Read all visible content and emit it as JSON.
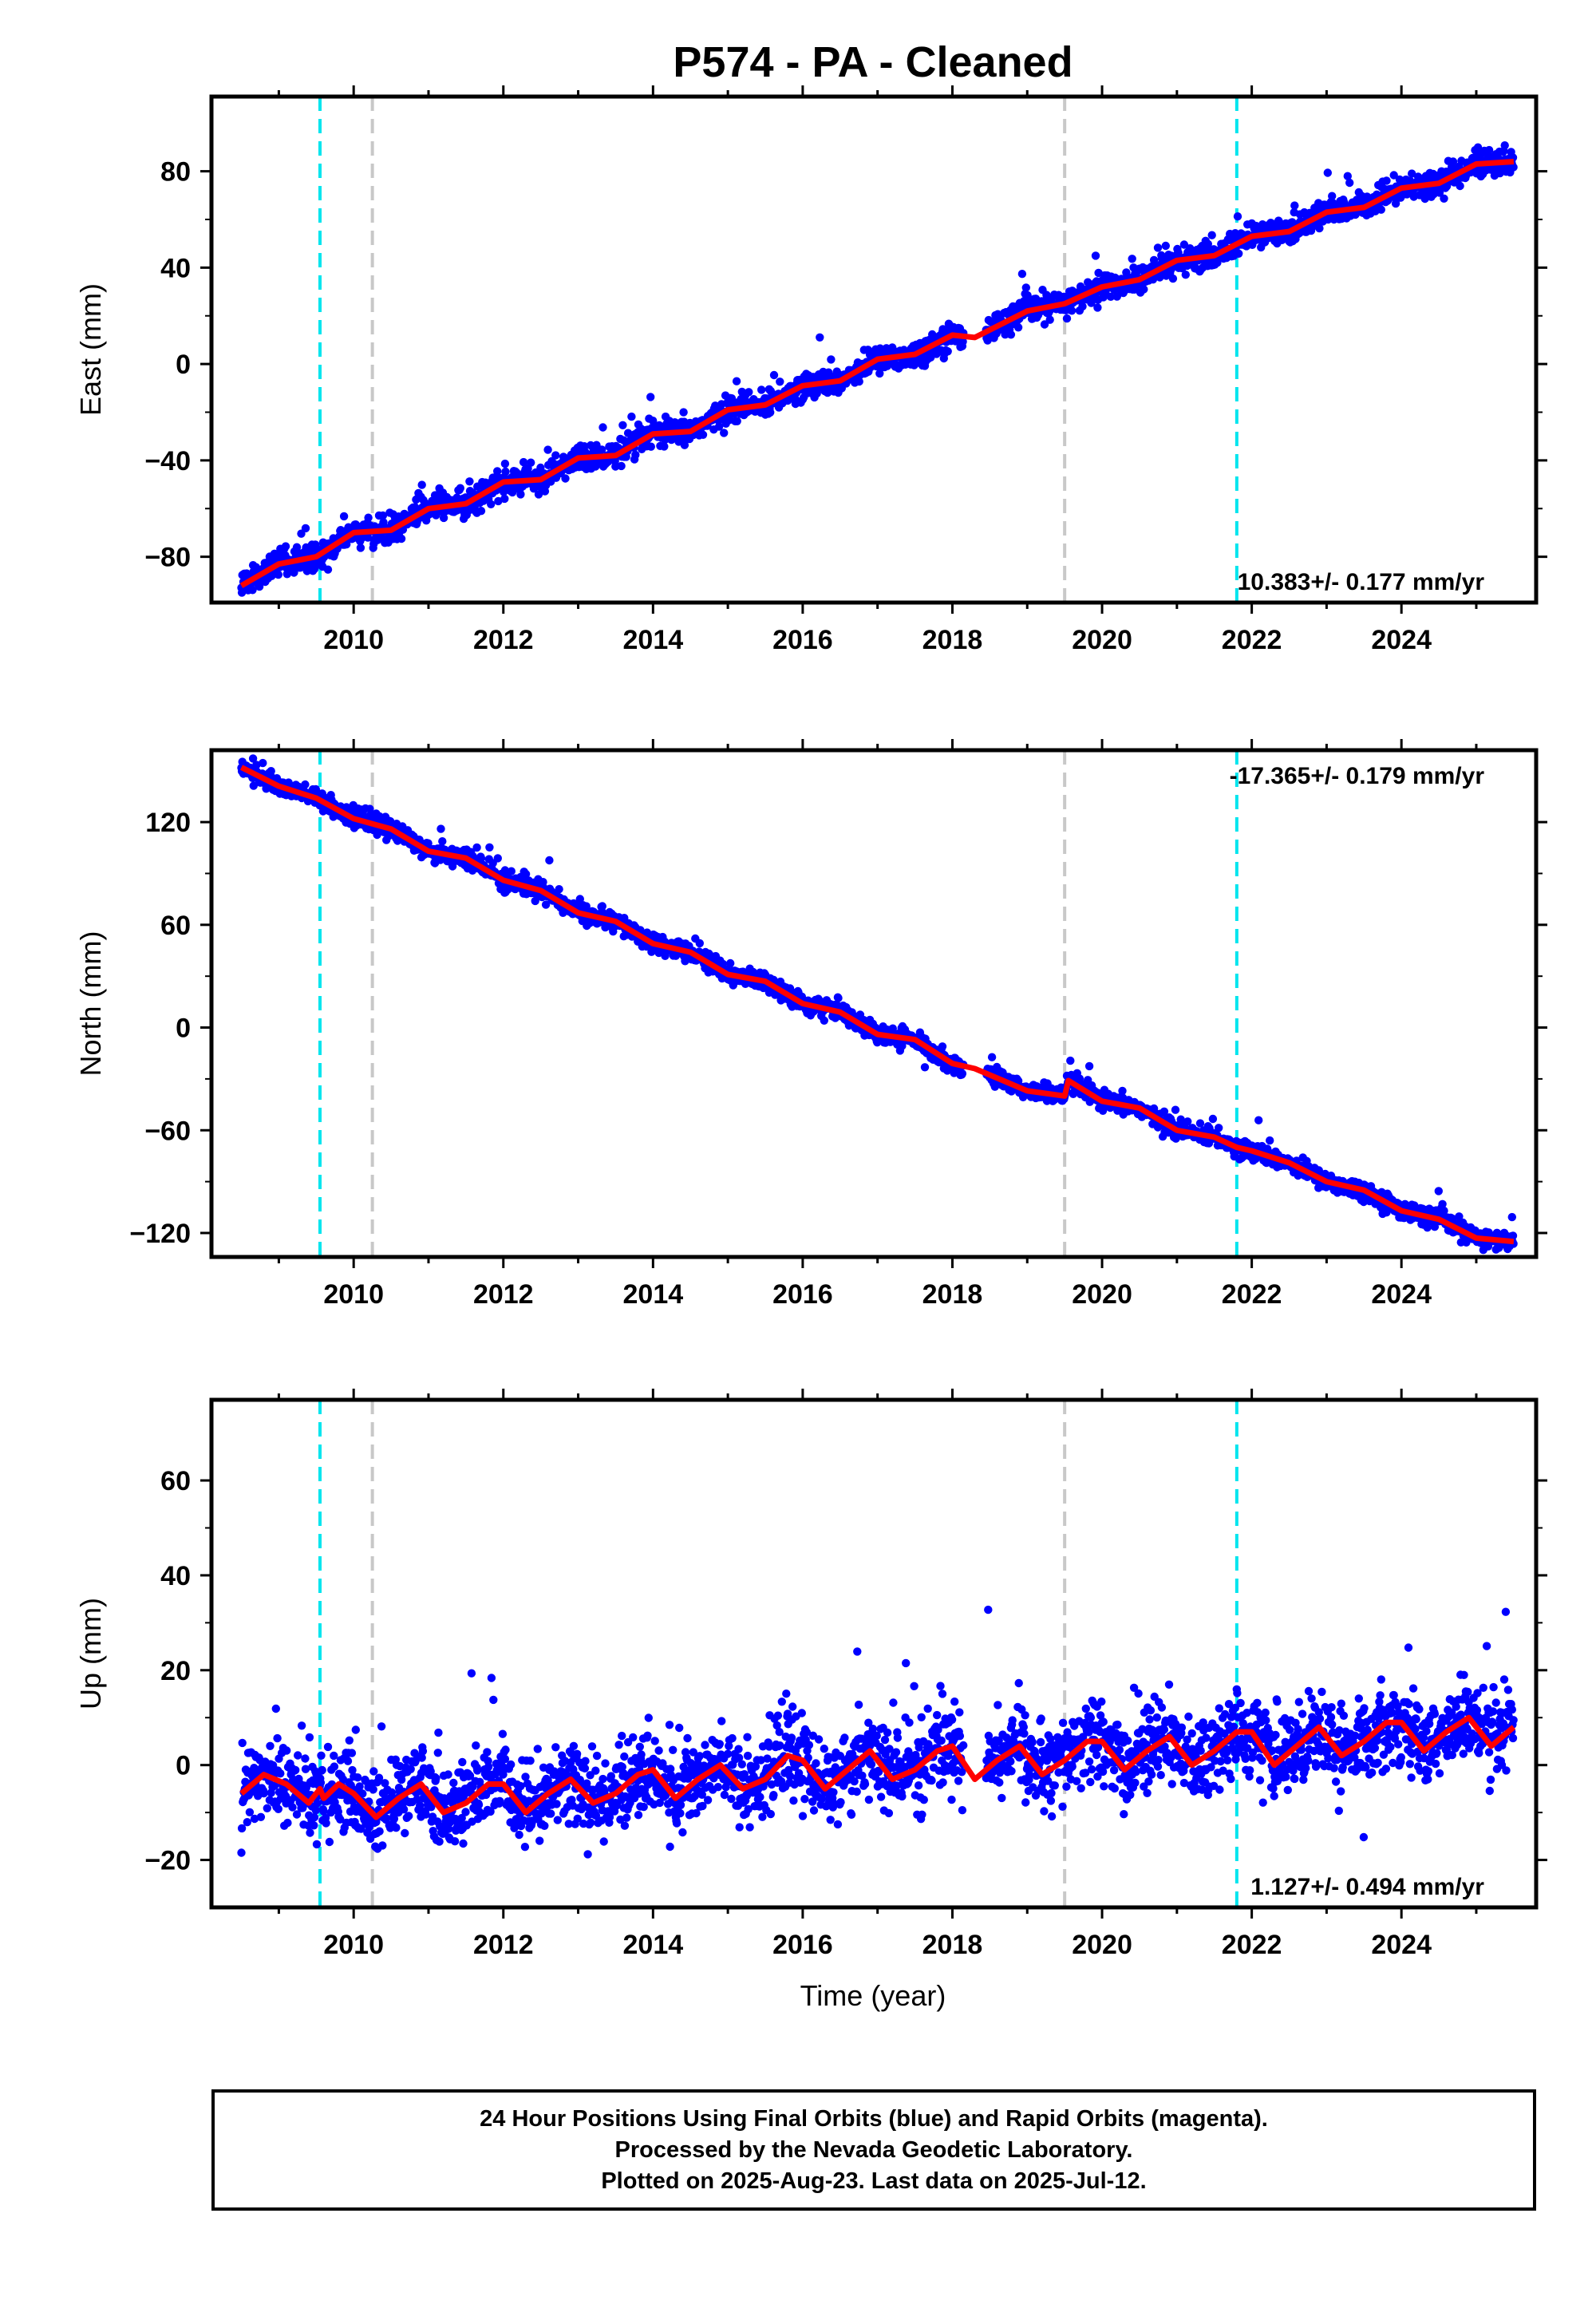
{
  "title": "P574  - PA - Cleaned",
  "xlabel": "Time (year)",
  "footer": {
    "line1": "24 Hour Positions Using Final Orbits (blue) and Rapid Orbits (magenta).",
    "line2": "Processed by the Nevada Geodetic Laboratory.",
    "line3": "Plotted on 2025-Aug-23. Last data on 2025-Jul-12."
  },
  "colors": {
    "points": "#0000ff",
    "model": "#ff0000",
    "equipment_change": "#00e5ee",
    "other_event": "#c8c8c8"
  },
  "chart_data": [
    {
      "type": "scatter",
      "component": "East",
      "ylabel": "East (mm)",
      "rate_text": "10.383+/- 0.177 mm/yr",
      "rate_position": "bottom-right",
      "xlim": [
        2008.1,
        2025.8
      ],
      "ylim": [
        -99,
        111
      ],
      "yticks": [
        -80,
        -40,
        0,
        40,
        80
      ],
      "xticks": [
        2010,
        2012,
        2014,
        2016,
        2018,
        2020,
        2022,
        2024
      ],
      "model_line": [
        [
          2008.5,
          -92
        ],
        [
          2009.0,
          -83
        ],
        [
          2009.5,
          -80
        ],
        [
          2010.0,
          -70
        ],
        [
          2010.5,
          -69
        ],
        [
          2011.0,
          -60
        ],
        [
          2011.5,
          -58
        ],
        [
          2012.0,
          -49
        ],
        [
          2012.5,
          -48
        ],
        [
          2013.0,
          -39
        ],
        [
          2013.5,
          -38
        ],
        [
          2014.0,
          -29
        ],
        [
          2014.5,
          -28
        ],
        [
          2015.0,
          -19
        ],
        [
          2015.5,
          -17
        ],
        [
          2016.0,
          -9
        ],
        [
          2016.5,
          -7
        ],
        [
          2017.0,
          2
        ],
        [
          2017.5,
          4
        ],
        [
          2018.0,
          12
        ],
        [
          2018.3,
          11
        ],
        [
          2019.0,
          22
        ],
        [
          2019.5,
          25
        ],
        [
          2020.0,
          32
        ],
        [
          2020.5,
          35
        ],
        [
          2021.0,
          43
        ],
        [
          2021.5,
          45
        ],
        [
          2022.0,
          53
        ],
        [
          2022.5,
          55
        ],
        [
          2023.0,
          63
        ],
        [
          2023.5,
          65
        ],
        [
          2024.0,
          73
        ],
        [
          2024.5,
          75
        ],
        [
          2025.0,
          83
        ],
        [
          2025.5,
          84
        ]
      ]
    },
    {
      "type": "scatter",
      "component": "North",
      "ylabel": "North (mm)",
      "rate_text": "-17.365+/- 0.179 mm/yr",
      "rate_position": "top-right",
      "xlim": [
        2008.1,
        2025.8
      ],
      "ylim": [
        -134,
        162
      ],
      "yticks": [
        -120,
        -60,
        0,
        60,
        120
      ],
      "xticks": [
        2010,
        2012,
        2014,
        2016,
        2018,
        2020,
        2022,
        2024
      ],
      "model_line": [
        [
          2008.5,
          152
        ],
        [
          2009.0,
          141
        ],
        [
          2009.5,
          134
        ],
        [
          2010.0,
          122
        ],
        [
          2010.5,
          116
        ],
        [
          2011.0,
          103
        ],
        [
          2011.5,
          99
        ],
        [
          2012.0,
          86
        ],
        [
          2012.5,
          80
        ],
        [
          2013.0,
          67
        ],
        [
          2013.5,
          62
        ],
        [
          2014.0,
          49
        ],
        [
          2014.5,
          44
        ],
        [
          2015.0,
          31
        ],
        [
          2015.5,
          27
        ],
        [
          2016.0,
          14
        ],
        [
          2016.5,
          9
        ],
        [
          2017.0,
          -4
        ],
        [
          2017.5,
          -7
        ],
        [
          2018.0,
          -21
        ],
        [
          2018.3,
          -24
        ],
        [
          2019.0,
          -37
        ],
        [
          2019.5,
          -40
        ],
        [
          2019.55,
          -31
        ],
        [
          2020.0,
          -43
        ],
        [
          2020.5,
          -47
        ],
        [
          2021.0,
          -60
        ],
        [
          2021.5,
          -64
        ],
        [
          2021.8,
          -70
        ],
        [
          2022.0,
          -72
        ],
        [
          2022.5,
          -79
        ],
        [
          2023.0,
          -90
        ],
        [
          2023.5,
          -95
        ],
        [
          2024.0,
          -107
        ],
        [
          2024.5,
          -112
        ],
        [
          2025.0,
          -123
        ],
        [
          2025.5,
          -125
        ]
      ]
    },
    {
      "type": "scatter",
      "component": "Up",
      "ylabel": "Up (mm)",
      "rate_text": "1.127+/- 0.494 mm/yr",
      "rate_position": "bottom-right",
      "xlim": [
        2008.1,
        2025.8
      ],
      "ylim": [
        -30,
        77
      ],
      "yticks": [
        -20,
        0,
        20,
        40,
        60
      ],
      "xticks": [
        2010,
        2012,
        2014,
        2016,
        2018,
        2020,
        2022,
        2024
      ],
      "model_line": [
        [
          2008.5,
          -6
        ],
        [
          2008.8,
          -2
        ],
        [
          2009.1,
          -4
        ],
        [
          2009.4,
          -8
        ],
        [
          2009.55,
          -5
        ],
        [
          2009.6,
          -7
        ],
        [
          2009.8,
          -4
        ],
        [
          2010.0,
          -6
        ],
        [
          2010.3,
          -11
        ],
        [
          2010.6,
          -7
        ],
        [
          2010.9,
          -4
        ],
        [
          2011.2,
          -10
        ],
        [
          2011.5,
          -8
        ],
        [
          2011.8,
          -4
        ],
        [
          2012.0,
          -4
        ],
        [
          2012.3,
          -10
        ],
        [
          2012.6,
          -6
        ],
        [
          2012.9,
          -3
        ],
        [
          2013.2,
          -8
        ],
        [
          2013.5,
          -6
        ],
        [
          2013.8,
          -2
        ],
        [
          2014.0,
          -1
        ],
        [
          2014.3,
          -7
        ],
        [
          2014.6,
          -3
        ],
        [
          2014.9,
          0
        ],
        [
          2015.2,
          -5
        ],
        [
          2015.5,
          -3
        ],
        [
          2015.8,
          2
        ],
        [
          2016.0,
          1
        ],
        [
          2016.3,
          -5
        ],
        [
          2016.6,
          -1
        ],
        [
          2016.9,
          3
        ],
        [
          2017.2,
          -3
        ],
        [
          2017.5,
          -1
        ],
        [
          2017.8,
          3
        ],
        [
          2018.0,
          4
        ],
        [
          2018.3,
          -3
        ],
        [
          2018.6,
          1
        ],
        [
          2018.9,
          4
        ],
        [
          2019.2,
          -2
        ],
        [
          2019.5,
          1
        ],
        [
          2019.8,
          5
        ],
        [
          2020.0,
          5
        ],
        [
          2020.3,
          -1
        ],
        [
          2020.6,
          3
        ],
        [
          2020.9,
          6
        ],
        [
          2021.2,
          0
        ],
        [
          2021.5,
          3
        ],
        [
          2021.8,
          7
        ],
        [
          2022.0,
          7
        ],
        [
          2022.3,
          0
        ],
        [
          2022.6,
          4
        ],
        [
          2022.9,
          8
        ],
        [
          2023.2,
          2
        ],
        [
          2023.5,
          5
        ],
        [
          2023.8,
          9
        ],
        [
          2024.0,
          9
        ],
        [
          2024.3,
          3
        ],
        [
          2024.6,
          7
        ],
        [
          2024.9,
          10
        ],
        [
          2025.2,
          4
        ],
        [
          2025.5,
          8
        ]
      ]
    }
  ],
  "events": {
    "equipment_changes": [
      2009.55,
      2021.8
    ],
    "other_events": [
      2010.25,
      2019.5
    ]
  }
}
